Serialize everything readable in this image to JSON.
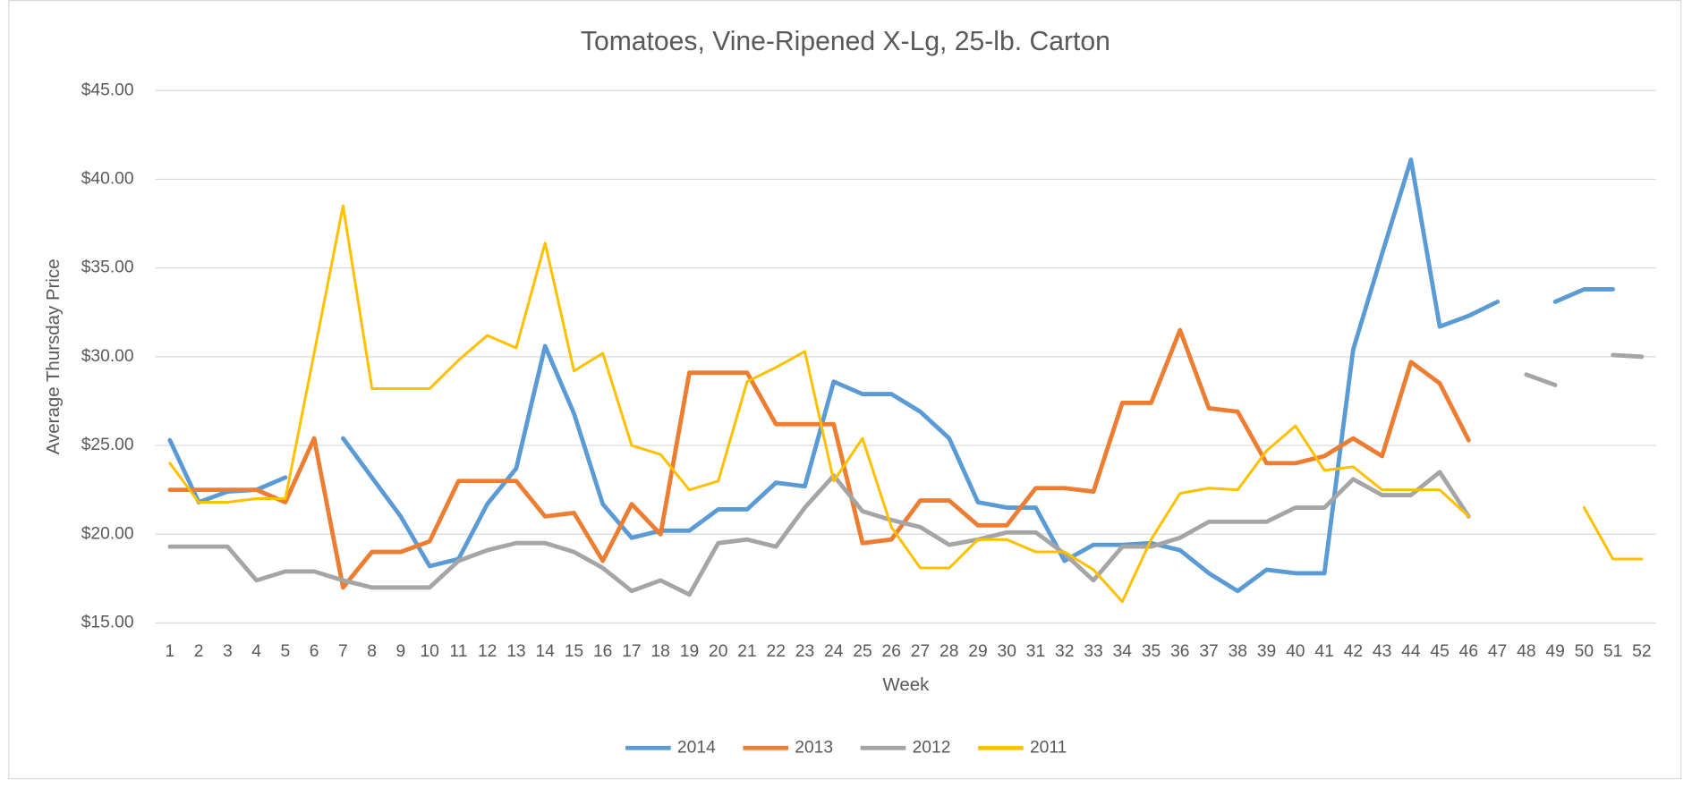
{
  "chart_data": {
    "type": "line",
    "title": "Tomatoes, Vine-Ripened X-Lg, 25-lb. Carton",
    "x_label": "Week",
    "y_label": "Average Thursday Price",
    "categories": [
      1,
      2,
      3,
      4,
      5,
      6,
      7,
      8,
      9,
      10,
      11,
      12,
      13,
      14,
      15,
      16,
      17,
      18,
      19,
      20,
      21,
      22,
      23,
      24,
      25,
      26,
      27,
      28,
      29,
      30,
      31,
      32,
      33,
      34,
      35,
      36,
      37,
      38,
      39,
      40,
      41,
      42,
      43,
      44,
      45,
      46,
      47,
      48,
      49,
      50,
      51,
      52
    ],
    "ylim": [
      15,
      45
    ],
    "yticks": [
      {
        "value": 15,
        "label": "$15.00"
      },
      {
        "value": 20,
        "label": "$20.00"
      },
      {
        "value": 25,
        "label": "$25.00"
      },
      {
        "value": 30,
        "label": "$30.00"
      },
      {
        "value": 35,
        "label": "$35.00"
      },
      {
        "value": 40,
        "label": "$40.00"
      },
      {
        "value": 45,
        "label": "$45.00"
      }
    ],
    "grid": true,
    "legend": "bottom",
    "series": [
      {
        "name": "2014",
        "color": "#5b9bd5",
        "values": [
          25.3,
          21.8,
          22.4,
          22.5,
          23.2,
          null,
          25.4,
          23.2,
          21.0,
          18.2,
          18.6,
          21.7,
          23.7,
          30.6,
          26.8,
          21.7,
          19.8,
          20.2,
          20.2,
          21.4,
          21.4,
          22.9,
          22.7,
          28.6,
          27.9,
          27.9,
          26.9,
          25.4,
          21.8,
          21.5,
          21.5,
          18.5,
          19.4,
          19.4,
          19.5,
          19.1,
          17.8,
          16.8,
          18.0,
          17.8,
          17.8,
          30.4,
          35.8,
          41.1,
          31.7,
          32.3,
          33.1,
          null,
          33.1,
          33.8,
          33.8,
          null
        ]
      },
      {
        "name": "2013",
        "color": "#ed7d31",
        "values": [
          22.5,
          22.5,
          22.5,
          22.5,
          21.8,
          25.4,
          17.0,
          19.0,
          19.0,
          19.6,
          23.0,
          23.0,
          23.0,
          21.0,
          21.2,
          18.5,
          21.7,
          20.0,
          29.1,
          29.1,
          29.1,
          26.2,
          26.2,
          26.2,
          19.5,
          19.7,
          21.9,
          21.9,
          20.5,
          20.5,
          22.6,
          22.6,
          22.4,
          27.4,
          27.4,
          31.5,
          27.1,
          26.9,
          24.0,
          24.0,
          24.4,
          25.4,
          24.4,
          29.7,
          28.5,
          25.3,
          null,
          null,
          null,
          null,
          null,
          null
        ]
      },
      {
        "name": "2012",
        "color": "#a5a5a5",
        "values": [
          19.3,
          19.3,
          19.3,
          17.4,
          17.9,
          17.9,
          17.4,
          17.0,
          17.0,
          17.0,
          18.5,
          19.1,
          19.5,
          19.5,
          19.0,
          18.1,
          16.8,
          17.4,
          16.6,
          19.5,
          19.7,
          19.3,
          21.5,
          23.3,
          21.3,
          20.8,
          20.4,
          19.4,
          19.7,
          20.1,
          20.1,
          18.9,
          17.4,
          19.3,
          19.3,
          19.8,
          20.7,
          20.7,
          20.7,
          21.5,
          21.5,
          23.1,
          22.2,
          22.2,
          23.5,
          21.0,
          null,
          29.0,
          28.4,
          null,
          30.1,
          30.0
        ]
      },
      {
        "name": "2011",
        "color": "#ffc000",
        "values": [
          24.0,
          21.8,
          21.8,
          22.0,
          22.0,
          30.2,
          38.5,
          28.2,
          28.2,
          28.2,
          29.8,
          31.2,
          30.5,
          36.4,
          29.2,
          30.2,
          25.0,
          24.5,
          22.5,
          23.0,
          28.6,
          29.4,
          30.3,
          23.0,
          25.4,
          20.4,
          18.1,
          18.1,
          19.7,
          19.7,
          19.0,
          19.0,
          18.0,
          16.2,
          19.7,
          22.3,
          22.6,
          22.5,
          24.7,
          26.1,
          23.6,
          23.8,
          22.5,
          22.5,
          22.5,
          21.0,
          null,
          null,
          null,
          21.5,
          18.6,
          18.6
        ]
      }
    ]
  }
}
